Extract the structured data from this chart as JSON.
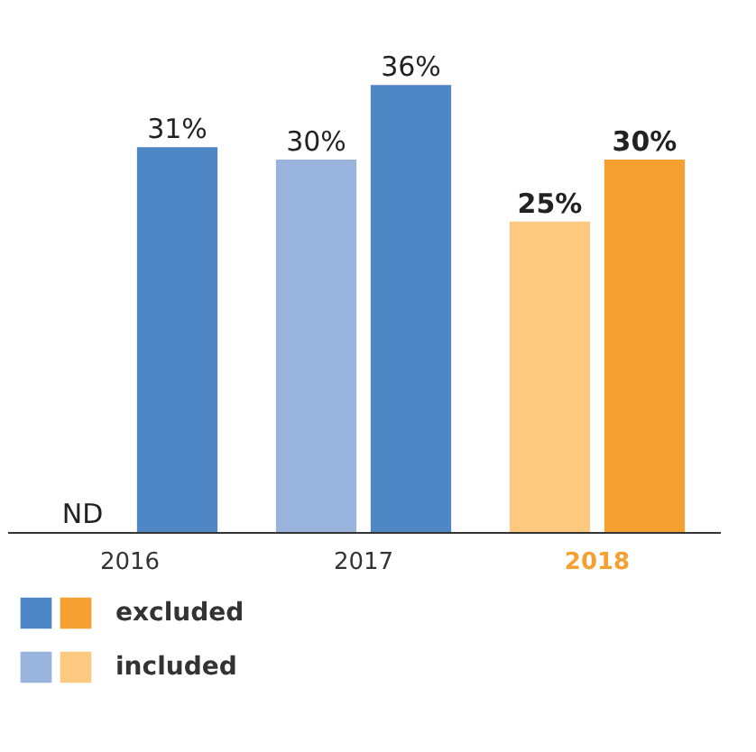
{
  "chart_data": {
    "type": "bar",
    "categories": [
      "2016",
      "2017",
      "2018"
    ],
    "series": [
      {
        "name": "excluded",
        "colors": [
          "#4f86c6",
          "#4f86c6",
          "#f5a030"
        ],
        "values": [
          31,
          36,
          30
        ],
        "value_labels": [
          "31%",
          "36%",
          "30%"
        ]
      },
      {
        "name": "included",
        "colors": [
          "#98b3dc",
          "#98b3dc",
          "#fdc880"
        ],
        "values": [
          null,
          30,
          25
        ],
        "value_labels": [
          "ND",
          "30%",
          "25%"
        ]
      }
    ],
    "legend": "bottom"
  }
}
